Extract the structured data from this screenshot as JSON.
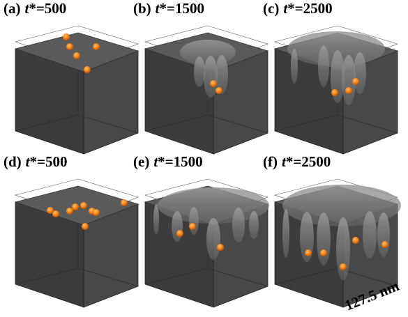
{
  "panels": [
    {
      "tag": "(a)",
      "var": "t",
      "rest": "*=500"
    },
    {
      "tag": "(b)",
      "var": "t",
      "rest": "*=1500"
    },
    {
      "tag": "(c)",
      "var": "t",
      "rest": "*=2500"
    },
    {
      "tag": "(d)",
      "var": "t",
      "rest": "*=500"
    },
    {
      "tag": "(e)",
      "var": "t",
      "rest": "*=1500"
    },
    {
      "tag": "(f)",
      "var": "t",
      "rest": "*=2500"
    }
  ],
  "scale_label": "127.5 nm"
}
